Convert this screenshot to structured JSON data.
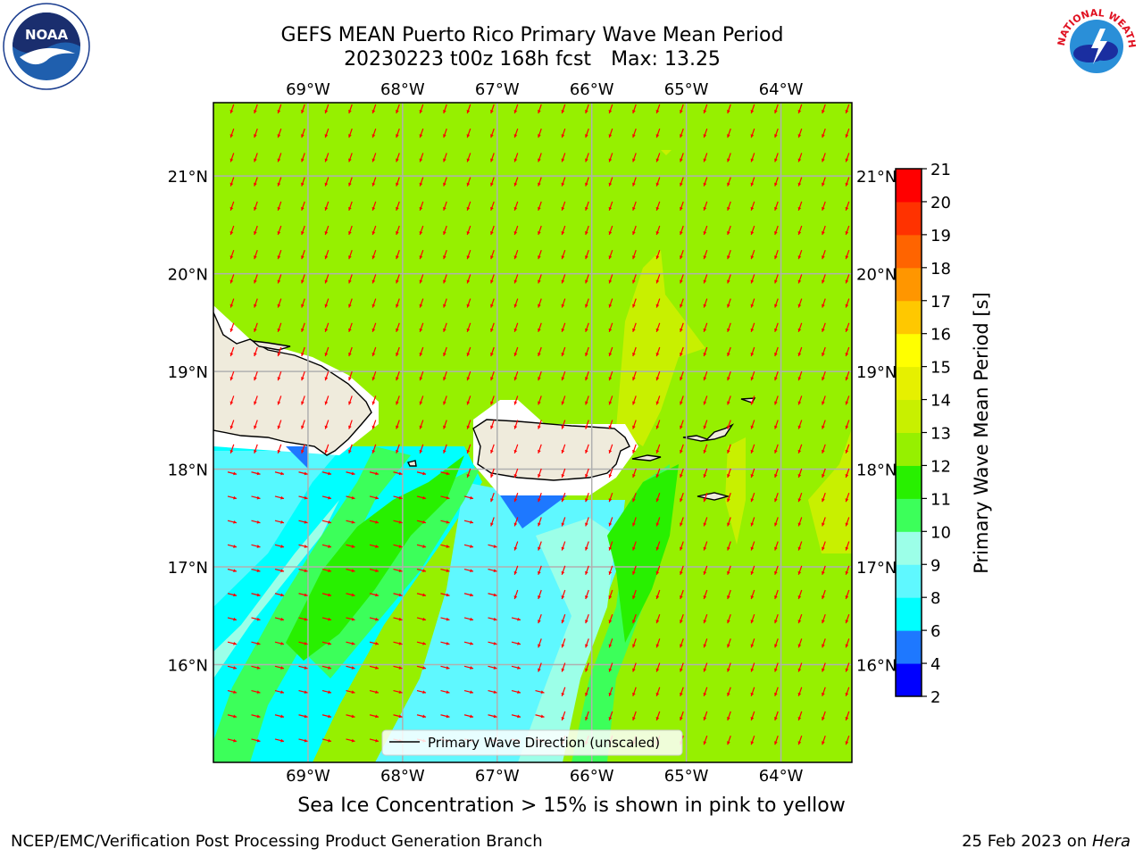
{
  "header": {
    "title": "GEFS MEAN Puerto Rico Primary Wave Mean Period",
    "subtitle_run": "20230223 t00z 168h fcst",
    "subtitle_max": "Max: 13.25"
  },
  "map": {
    "lon_range": [
      -70.0,
      -63.25
    ],
    "lat_range": [
      15.0,
      21.75
    ],
    "lon_ticks": [
      "69°W",
      "68°W",
      "67°W",
      "66°W",
      "65°W",
      "64°W"
    ],
    "lat_ticks": [
      "21°N",
      "20°N",
      "19°N",
      "18°N",
      "17°N",
      "16°N"
    ],
    "gridlines": true,
    "vector_color": "#ff0000",
    "land_color": "#efebdc",
    "legend_label": "Primary Wave Direction (unscaled)",
    "legend_placement": "bottom-center"
  },
  "colorbar": {
    "label": "Primary Wave Mean Period [s]",
    "levels": [
      2,
      4,
      6,
      8,
      9,
      10,
      11,
      12,
      13,
      14,
      15,
      16,
      17,
      18,
      19,
      20,
      21
    ],
    "colors": [
      "#0000ff",
      "#1e78ff",
      "#00ffff",
      "#5ff8ff",
      "#9cffe8",
      "#3cff5a",
      "#28f000",
      "#96f000",
      "#c8f000",
      "#e6f000",
      "#ffff00",
      "#ffc800",
      "#ff9600",
      "#ff6400",
      "#ff3200",
      "#ff0000"
    ],
    "tick_labels": [
      "2",
      "4",
      "6",
      "8",
      "9",
      "10",
      "11",
      "12",
      "13",
      "14",
      "15",
      "16",
      "17",
      "18",
      "19",
      "20",
      "21"
    ]
  },
  "footer": {
    "note": "Sea Ice Concentration > 15% is shown in pink to yellow",
    "branch": "NCEP/EMC/Verification Post Processing Product Generation Branch",
    "date": "25 Feb 2023 on ",
    "host": "Hera"
  },
  "logos": {
    "noaa_text": "NOAA",
    "nws_ring_text": "NATIONAL WEATHER SERVICE"
  }
}
